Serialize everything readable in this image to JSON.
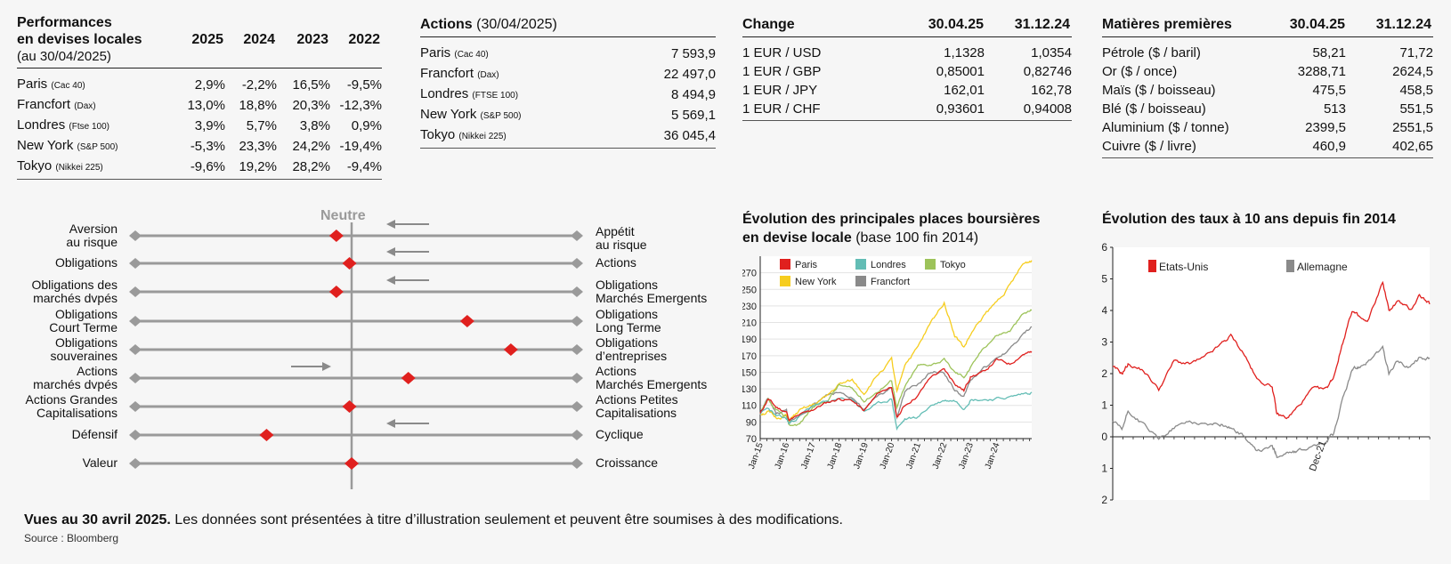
{
  "performance": {
    "title_line1": "Performances",
    "title_line2": "en devises locales",
    "subtitle": "(au 30/04/2025)",
    "years": [
      "2025",
      "2024",
      "2023",
      "2022"
    ],
    "rows": [
      {
        "name": "Paris",
        "index": "(Cac 40)",
        "values": [
          "2,9%",
          "-2,2%",
          "16,5%",
          "-9,5%"
        ]
      },
      {
        "name": "Francfort",
        "index": "(Dax)",
        "values": [
          "13,0%",
          "18,8%",
          "20,3%",
          "-12,3%"
        ]
      },
      {
        "name": "Londres",
        "index": "(Ftse 100)",
        "values": [
          "3,9%",
          "5,7%",
          "3,8%",
          "0,9%"
        ]
      },
      {
        "name": "New York",
        "index": "(S&P 500)",
        "values": [
          "-5,3%",
          "23,3%",
          "24,2%",
          "-19,4%"
        ]
      },
      {
        "name": "Tokyo",
        "index": "(Nikkei 225)",
        "values": [
          "-9,6%",
          "19,2%",
          "28,2%",
          "-9,4%"
        ]
      }
    ]
  },
  "actions": {
    "title": "Actions",
    "date": "(30/04/2025)",
    "rows": [
      {
        "name": "Paris",
        "index": "(Cac 40)",
        "value": "7 593,9"
      },
      {
        "name": "Francfort",
        "index": "(Dax)",
        "value": "22 497,0"
      },
      {
        "name": "Londres",
        "index": "(FTSE 100)",
        "value": "8 494,9"
      },
      {
        "name": "New York",
        "index": "(S&P 500)",
        "value": "5 569,1"
      },
      {
        "name": "Tokyo",
        "index": "(Nikkei 225)",
        "value": "36 045,4"
      }
    ]
  },
  "change": {
    "title": "Change",
    "col1": "30.04.25",
    "col2": "31.12.24",
    "rows": [
      {
        "name": "1 EUR / USD",
        "v1": "1,1328",
        "v2": "1,0354"
      },
      {
        "name": "1 EUR / GBP",
        "v1": "0,85001",
        "v2": "0,82746"
      },
      {
        "name": "1 EUR / JPY",
        "v1": "162,01",
        "v2": "162,78"
      },
      {
        "name": "1 EUR / CHF",
        "v1": "0,93601",
        "v2": "0,94008"
      }
    ]
  },
  "matieres": {
    "title": "Matières premières",
    "col1": "30.04.25",
    "col2": "31.12.24",
    "rows": [
      {
        "name": "Pétrole ($ / baril)",
        "v1": "58,21",
        "v2": "71,72"
      },
      {
        "name": "Or ($ / once)",
        "v1": "3288,71",
        "v2": "2624,5"
      },
      {
        "name": "Maïs ($ / boisseau)",
        "v1": "475,5",
        "v2": "458,5"
      },
      {
        "name": "Blé ($ / boisseau)",
        "v1": "513",
        "v2": "551,5"
      },
      {
        "name": "Aluminium ($ / tonne)",
        "v1": "2399,5",
        "v2": "2551,5"
      },
      {
        "name": "Cuivre ($ / livre)",
        "v1": "460,9",
        "v2": "402,65"
      }
    ]
  },
  "views": {
    "neutral_label": "Neutre",
    "rows": [
      {
        "left": [
          "Aversion",
          "au risque"
        ],
        "right": [
          "Appétit",
          "au risque"
        ],
        "position": -0.07,
        "trend": "left"
      },
      {
        "left": [
          "Obligations"
        ],
        "right": [
          "Actions"
        ],
        "position": -0.01,
        "trend": "left"
      },
      {
        "left": [
          "Obligations des",
          "marchés dvpés"
        ],
        "right": [
          "Obligations",
          "Marchés Emergents"
        ],
        "position": -0.07,
        "trend": "left"
      },
      {
        "left": [
          "Obligations",
          "Court Terme"
        ],
        "right": [
          "Obligations",
          "Long Terme"
        ],
        "position": 0.53,
        "trend": ""
      },
      {
        "left": [
          "Obligations",
          "souveraines"
        ],
        "right": [
          "Obligations",
          "d’entreprises"
        ],
        "position": 0.73,
        "trend": ""
      },
      {
        "left": [
          "Actions",
          "marchés dvpés"
        ],
        "right": [
          "Actions",
          "Marchés Emergents"
        ],
        "position": 0.26,
        "trend": "right"
      },
      {
        "left": [
          "Actions Grandes",
          "Capitalisations"
        ],
        "right": [
          "Actions Petites",
          "Capitalisations"
        ],
        "position": -0.01,
        "trend": ""
      },
      {
        "left": [
          "Défensif"
        ],
        "right": [
          "Cyclique"
        ],
        "position": -0.39,
        "trend": "left"
      },
      {
        "left": [
          "Valeur"
        ],
        "right": [
          "Croissance"
        ],
        "position": 0.0,
        "trend": ""
      }
    ]
  },
  "footer": {
    "bold": "Vues au 30 avril 2025.",
    "text": " Les données sont présentées à titre d’illustration seulement et peuvent être soumises à des modifications.",
    "source": "Source : Bloomberg"
  },
  "colors": {
    "red": "#e0201e",
    "teal": "#63bdb5",
    "green": "#9dc35a",
    "yellow": "#f6cd1e",
    "gray": "#8a8a8a",
    "marker": "#e0201e",
    "track": "#9a9a9a"
  },
  "chart_data": [
    {
      "type": "line",
      "title": "Évolution des principales places boursières",
      "title_line2": "en devise locale",
      "subtitle": "(base 100 fin 2014)",
      "x_ticks": [
        "Jan-15",
        "Jan-16",
        "Jan-17",
        "Jan-18",
        "Jan-19",
        "Jan-20",
        "Jan-21",
        "Jan-22",
        "Jan-23",
        "Jan-24"
      ],
      "ylim": [
        70,
        290
      ],
      "y_ticks": [
        70,
        90,
        110,
        130,
        150,
        170,
        190,
        210,
        230,
        250,
        270
      ],
      "x": [
        2015.0,
        2015.3,
        2015.6,
        2016.0,
        2016.1,
        2016.5,
        2017.0,
        2017.5,
        2018.0,
        2018.5,
        2018.95,
        2019.5,
        2020.0,
        2020.2,
        2020.5,
        2021.0,
        2021.5,
        2022.0,
        2022.4,
        2022.75,
        2023.0,
        2023.5,
        2024.0,
        2024.5,
        2025.0,
        2025.33
      ],
      "series": [
        {
          "name": "Paris",
          "color_key": "red",
          "values": [
            100,
            118,
            108,
            102,
            92,
            98,
            105,
            113,
            118,
            116,
            103,
            125,
            133,
            95,
            110,
            122,
            145,
            153,
            137,
            128,
            145,
            150,
            165,
            160,
            172,
            174
          ]
        },
        {
          "name": "Londres",
          "color_key": "teal",
          "values": [
            100,
            107,
            97,
            94,
            88,
            97,
            110,
            114,
            117,
            118,
            103,
            112,
            118,
            82,
            93,
            96,
            110,
            116,
            116,
            107,
            117,
            117,
            118,
            120,
            124,
            126
          ]
        },
        {
          "name": "Tokyo",
          "color_key": "green",
          "values": [
            100,
            116,
            103,
            96,
            86,
            88,
            108,
            114,
            135,
            130,
            115,
            128,
            140,
            108,
            132,
            158,
            160,
            165,
            150,
            145,
            155,
            180,
            195,
            200,
            220,
            225
          ]
        },
        {
          "name": "New York",
          "color_key": "yellow",
          "values": [
            100,
            102,
            95,
            98,
            92,
            103,
            110,
            120,
            135,
            140,
            125,
            148,
            165,
            125,
            160,
            180,
            210,
            235,
            195,
            180,
            195,
            218,
            235,
            255,
            280,
            285
          ]
        },
        {
          "name": "Francfort",
          "color_key": "gray",
          "values": [
            100,
            118,
            100,
            104,
            88,
            98,
            110,
            122,
            126,
            120,
            104,
            122,
            130,
            95,
            126,
            135,
            150,
            150,
            128,
            120,
            140,
            155,
            165,
            178,
            195,
            205
          ]
        }
      ],
      "legend": "top-left"
    },
    {
      "type": "line",
      "title": "Évolution des taux à 10 ans depuis fin 2014",
      "ylim": [
        -2,
        6
      ],
      "y_ticks": [
        -2,
        -1,
        0,
        1,
        2,
        3,
        4,
        5,
        6
      ],
      "annotation": "Dec-21",
      "annotation_x": 2021.95,
      "x": [
        2015.0,
        2015.3,
        2015.5,
        2016.0,
        2016.5,
        2017.0,
        2017.5,
        2018.0,
        2018.5,
        2018.85,
        2019.3,
        2019.7,
        2020.2,
        2020.35,
        2020.7,
        2021.0,
        2021.5,
        2021.95,
        2022.2,
        2022.5,
        2022.8,
        2023.0,
        2023.3,
        2023.8,
        2024.0,
        2024.3,
        2024.7,
        2025.0,
        2025.33
      ],
      "series": [
        {
          "name": "Etats-Unis",
          "color_key": "red",
          "values": [
            2.2,
            2.0,
            2.3,
            2.1,
            1.5,
            2.4,
            2.3,
            2.5,
            2.9,
            3.2,
            2.6,
            1.8,
            1.6,
            0.7,
            0.6,
            0.9,
            1.5,
            1.5,
            1.9,
            3.0,
            4.0,
            3.8,
            3.6,
            4.9,
            4.0,
            4.3,
            4.0,
            4.5,
            4.2
          ]
        },
        {
          "name": "Allemagne",
          "color_key": "gray",
          "values": [
            0.5,
            0.2,
            0.8,
            0.4,
            -0.1,
            0.3,
            0.5,
            0.4,
            0.4,
            0.3,
            0.0,
            -0.5,
            -0.3,
            -0.6,
            -0.5,
            -0.5,
            -0.3,
            -0.2,
            0.1,
            1.2,
            2.1,
            2.2,
            2.4,
            2.8,
            2.0,
            2.4,
            2.2,
            2.5,
            2.5
          ]
        }
      ],
      "legend": "top-left"
    }
  ]
}
